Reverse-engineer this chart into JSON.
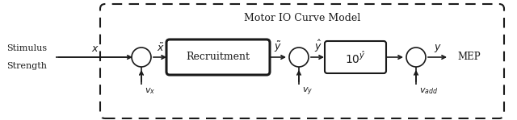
{
  "title": "Motor IO Curve Model",
  "stimulus_label_1": "Stimulus",
  "stimulus_label_2": "Strength",
  "mep_label": "MEP",
  "signal_x": "$x$",
  "signal_xtilde": "$\\tilde{x}$",
  "signal_ytilde": "$\\tilde{y}$",
  "signal_yhat": "$\\hat{y}$",
  "signal_y": "$y$",
  "noise_vx": "$v_x$",
  "noise_vy": "$v_y$",
  "noise_vadd": "$v_{add}$",
  "recruitment_label": "Recruitment",
  "power_label": "$10^{\\hat{y}}$",
  "bg_color": "#ffffff",
  "line_color": "#1a1a1a",
  "figsize": [
    6.4,
    1.49
  ],
  "dpi": 100
}
